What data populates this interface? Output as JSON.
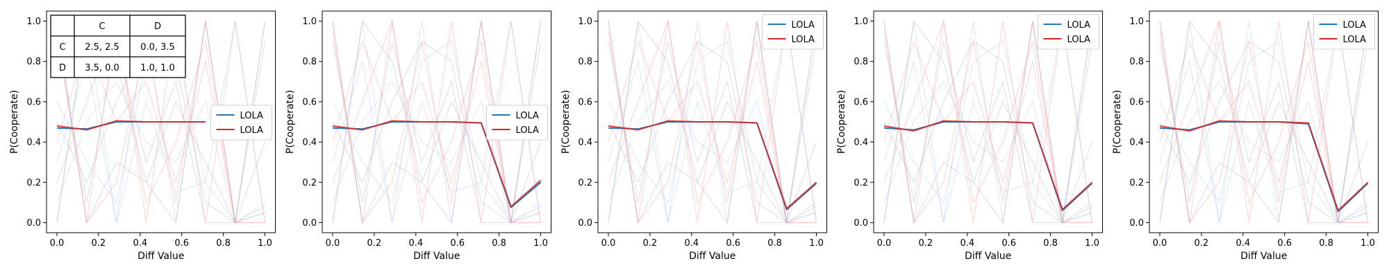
{
  "figure": {
    "background": "#ffffff",
    "colors": {
      "blue": "#1f77b4",
      "red": "#d62728",
      "faint_blue": "#aec7e8",
      "faint_red": "#ff9896",
      "faint_gray": "#b0b0c0"
    }
  },
  "chart_data": [
    {
      "type": "line",
      "xlabel": "Diff Value",
      "ylabel": "P(Cooperate)",
      "xlim": [
        -0.05,
        1.05
      ],
      "ylim": [
        -0.05,
        1.05
      ],
      "xticks": [
        "0.0",
        "0.2",
        "0.4",
        "0.6",
        "0.8",
        "1.0"
      ],
      "yticks": [
        "0.0",
        "0.2",
        "0.4",
        "0.6",
        "0.8",
        "1.0"
      ],
      "grid": false,
      "legend": {
        "placement": "center-right",
        "entries": [
          "LOLA",
          "LOLA"
        ]
      },
      "x": [
        0.0,
        0.1429,
        0.2857,
        0.4286,
        0.5714,
        0.7143,
        0.8571,
        1.0
      ],
      "series": [
        {
          "name": "LOLA",
          "color": "#1f77b4",
          "values": [
            0.47,
            0.465,
            0.5,
            0.5,
            0.5,
            0.5,
            null,
            null
          ]
        },
        {
          "name": "LOLA",
          "color": "#d62728",
          "values": [
            0.48,
            0.46,
            0.505,
            0.5,
            0.5,
            0.5,
            null,
            null
          ]
        }
      ],
      "payoff_table": {
        "col_headers": [
          "",
          "C",
          "D"
        ],
        "rows": [
          [
            "C",
            "2.5, 2.5",
            "0.0, 3.5"
          ],
          [
            "D",
            "3.5, 0.0",
            "1.0, 1.0"
          ]
        ]
      }
    },
    {
      "type": "line",
      "xlabel": "Diff Value",
      "ylabel": "P(Cooperate)",
      "xlim": [
        -0.05,
        1.05
      ],
      "ylim": [
        -0.05,
        1.05
      ],
      "xticks": [
        "0.0",
        "0.2",
        "0.4",
        "0.6",
        "0.8",
        "1.0"
      ],
      "yticks": [
        "0.0",
        "0.2",
        "0.4",
        "0.6",
        "0.8",
        "1.0"
      ],
      "grid": false,
      "legend": {
        "placement": "center-right",
        "entries": [
          "LOLA",
          "LOLA"
        ]
      },
      "x": [
        0.0,
        0.1429,
        0.2857,
        0.4286,
        0.5714,
        0.7143,
        0.8571,
        1.0
      ],
      "series": [
        {
          "name": "LOLA",
          "color": "#1f77b4",
          "values": [
            0.47,
            0.465,
            0.5,
            0.5,
            0.5,
            0.495,
            0.075,
            0.2
          ]
        },
        {
          "name": "LOLA",
          "color": "#d62728",
          "values": [
            0.48,
            0.46,
            0.505,
            0.5,
            0.5,
            0.495,
            0.08,
            0.21
          ]
        }
      ]
    },
    {
      "type": "line",
      "xlabel": "Diff Value",
      "ylabel": "P(Cooperate)",
      "xlim": [
        -0.05,
        1.05
      ],
      "ylim": [
        -0.05,
        1.05
      ],
      "xticks": [
        "0.0",
        "0.2",
        "0.4",
        "0.6",
        "0.8",
        "1.0"
      ],
      "yticks": [
        "0.0",
        "0.2",
        "0.4",
        "0.6",
        "0.8",
        "1.0"
      ],
      "grid": false,
      "legend": {
        "placement": "top-right",
        "entries": [
          "LOLA",
          "LOLA"
        ]
      },
      "x": [
        0.0,
        0.1429,
        0.2857,
        0.4286,
        0.5714,
        0.7143,
        0.8571,
        1.0
      ],
      "series": [
        {
          "name": "LOLA",
          "color": "#1f77b4",
          "values": [
            0.47,
            0.465,
            0.5,
            0.5,
            0.5,
            0.495,
            0.065,
            0.195
          ]
        },
        {
          "name": "LOLA",
          "color": "#d62728",
          "values": [
            0.48,
            0.46,
            0.505,
            0.5,
            0.5,
            0.495,
            0.07,
            0.2
          ]
        }
      ]
    },
    {
      "type": "line",
      "xlabel": "Diff Value",
      "ylabel": "P(Cooperate)",
      "xlim": [
        -0.05,
        1.05
      ],
      "ylim": [
        -0.05,
        1.05
      ],
      "xticks": [
        "0.0",
        "0.2",
        "0.4",
        "0.6",
        "0.8",
        "1.0"
      ],
      "yticks": [
        "0.0",
        "0.2",
        "0.4",
        "0.6",
        "0.8",
        "1.0"
      ],
      "grid": false,
      "legend": {
        "placement": "top-right",
        "entries": [
          "LOLA",
          "LOLA"
        ]
      },
      "x": [
        0.0,
        0.1429,
        0.2857,
        0.4286,
        0.5714,
        0.7143,
        0.8571,
        1.0
      ],
      "series": [
        {
          "name": "LOLA",
          "color": "#1f77b4",
          "values": [
            0.47,
            0.46,
            0.5,
            0.5,
            0.5,
            0.495,
            0.06,
            0.195
          ]
        },
        {
          "name": "LOLA",
          "color": "#d62728",
          "values": [
            0.48,
            0.455,
            0.505,
            0.5,
            0.5,
            0.495,
            0.065,
            0.2
          ]
        }
      ]
    },
    {
      "type": "line",
      "xlabel": "Diff Value",
      "ylabel": "P(Cooperate)",
      "xlim": [
        -0.05,
        1.05
      ],
      "ylim": [
        -0.05,
        1.05
      ],
      "xticks": [
        "0.0",
        "0.2",
        "0.4",
        "0.6",
        "0.8",
        "1.0"
      ],
      "yticks": [
        "0.0",
        "0.2",
        "0.4",
        "0.6",
        "0.8",
        "1.0"
      ],
      "grid": false,
      "legend": {
        "placement": "top-right",
        "entries": [
          "LOLA",
          "LOLA"
        ]
      },
      "x": [
        0.0,
        0.1429,
        0.2857,
        0.4286,
        0.5714,
        0.7143,
        0.8571,
        1.0
      ],
      "series": [
        {
          "name": "LOLA",
          "color": "#1f77b4",
          "values": [
            0.47,
            0.46,
            0.5,
            0.5,
            0.5,
            0.49,
            0.055,
            0.195
          ]
        },
        {
          "name": "LOLA",
          "color": "#d62728",
          "values": [
            0.48,
            0.455,
            0.505,
            0.5,
            0.5,
            0.495,
            0.06,
            0.2
          ]
        }
      ]
    }
  ],
  "background_runs": [
    {
      "color": "faint_blue",
      "values": [
        0.0,
        1.0,
        0.0,
        1.0,
        0.0,
        1.0,
        0.0,
        1.0
      ]
    },
    {
      "color": "faint_red",
      "values": [
        1.0,
        0.0,
        1.0,
        0.0,
        1.0,
        0.0,
        1.0,
        0.0
      ]
    },
    {
      "color": "faint_gray",
      "values": [
        0.0,
        1.0,
        0.8,
        0.2,
        0.0,
        1.0,
        0.0,
        0.9
      ]
    },
    {
      "color": "faint_red",
      "values": [
        0.95,
        0.0,
        0.2,
        0.9,
        0.1,
        1.0,
        0.0,
        0.05
      ]
    },
    {
      "color": "faint_blue",
      "values": [
        0.3,
        0.8,
        0.0,
        0.6,
        0.15,
        0.2,
        1.0,
        0.0
      ]
    },
    {
      "color": "faint_gray",
      "values": [
        0.9,
        0.1,
        0.9,
        0.3,
        0.7,
        0.0,
        0.0,
        1.0
      ]
    },
    {
      "color": "faint_red",
      "values": [
        0.2,
        0.6,
        1.0,
        0.1,
        0.4,
        0.9,
        0.0,
        0.0
      ]
    },
    {
      "color": "faint_blue",
      "values": [
        0.6,
        0.3,
        0.1,
        0.8,
        0.9,
        0.2,
        0.0,
        0.1
      ]
    },
    {
      "color": "faint_gray",
      "values": [
        1.0,
        0.0,
        0.3,
        0.2,
        0.6,
        0.3,
        0.0,
        0.4
      ]
    },
    {
      "color": "faint_red",
      "values": [
        0.4,
        0.9,
        0.5,
        0.7,
        0.2,
        0.8,
        0.0,
        0.0
      ]
    },
    {
      "color": "faint_blue",
      "values": [
        0.1,
        0.5,
        0.7,
        0.4,
        0.3,
        0.6,
        0.0,
        0.05
      ]
    },
    {
      "color": "faint_gray",
      "values": [
        0.5,
        0.2,
        0.6,
        0.9,
        0.8,
        0.1,
        0.0,
        0.08
      ]
    }
  ]
}
